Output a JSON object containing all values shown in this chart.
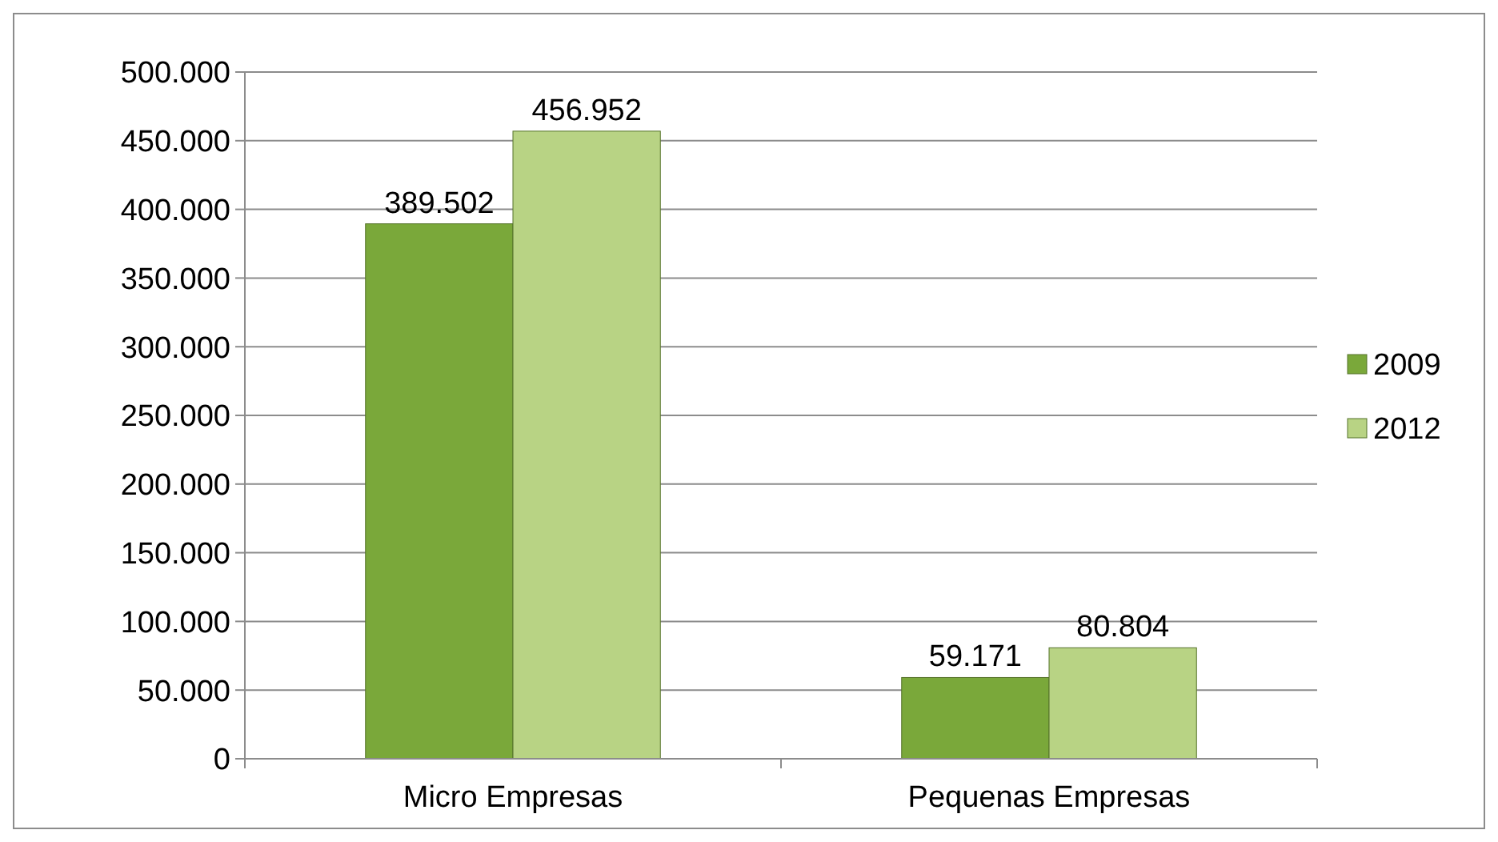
{
  "chart_data": {
    "type": "bar",
    "categories": [
      "Micro Empresas",
      "Pequenas Empresas"
    ],
    "series": [
      {
        "name": "2009",
        "color": "#7aa83a",
        "values": [
          389502,
          59171
        ],
        "value_labels": [
          "389.502",
          "59.171"
        ]
      },
      {
        "name": "2012",
        "color": "#b8d384",
        "values": [
          456952,
          80804
        ],
        "value_labels": [
          "456.952",
          "80.804"
        ]
      }
    ],
    "ylim": [
      0,
      500000
    ],
    "yticks": [
      {
        "value": 0,
        "label": "0"
      },
      {
        "value": 50000,
        "label": "50.000"
      },
      {
        "value": 100000,
        "label": "100.000"
      },
      {
        "value": 150000,
        "label": "150.000"
      },
      {
        "value": 200000,
        "label": "200.000"
      },
      {
        "value": 250000,
        "label": "250.000"
      },
      {
        "value": 300000,
        "label": "300.000"
      },
      {
        "value": 350000,
        "label": "350.000"
      },
      {
        "value": 400000,
        "label": "400.000"
      },
      {
        "value": 450000,
        "label": "450.000"
      },
      {
        "value": 500000,
        "label": "500.000"
      }
    ],
    "grid": "y",
    "legend": "right"
  }
}
